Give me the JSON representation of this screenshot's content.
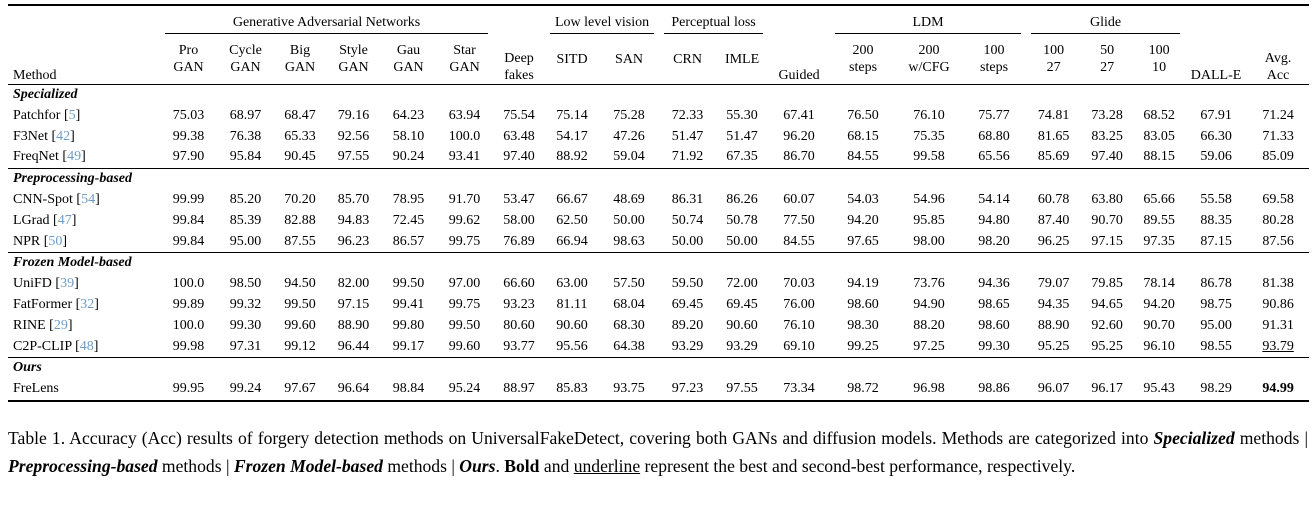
{
  "colors": {
    "citation": "#6d9cc7",
    "text": "#000000",
    "background": "#ffffff"
  },
  "table": {
    "columns": [
      {
        "kind": "rowspan",
        "label": "Method"
      },
      {
        "kind": "group",
        "label": "Generative Adversarial Networks",
        "subs": [
          "Pro\nGAN",
          "Cycle\nGAN",
          "Big\nGAN",
          "Style\nGAN",
          "Gau\nGAN",
          "Star\nGAN"
        ]
      },
      {
        "kind": "rowspan",
        "label": "Deep\nfakes"
      },
      {
        "kind": "group",
        "label": "Low level vision",
        "subs": [
          "SITD",
          "SAN"
        ]
      },
      {
        "kind": "group",
        "label": "Perceptual loss",
        "subs": [
          "CRN",
          "IMLE"
        ]
      },
      {
        "kind": "rowspan",
        "label": "Guided"
      },
      {
        "kind": "group",
        "label": "LDM",
        "subs": [
          "200\nsteps",
          "200\nw/CFG",
          "100\nsteps"
        ]
      },
      {
        "kind": "group",
        "label": "Glide",
        "subs": [
          "100\n27",
          "50\n27",
          "100\n10"
        ]
      },
      {
        "kind": "rowspan",
        "label": "DALL-E"
      },
      {
        "kind": "rowspan",
        "label": "Avg.\nAcc"
      }
    ],
    "sections": [
      {
        "title": "Specialized",
        "rows": [
          {
            "method": "Patchfor",
            "ref": "5",
            "values": [
              "75.03",
              "68.97",
              "68.47",
              "79.16",
              "64.23",
              "63.94",
              "75.54",
              "75.14",
              "75.28",
              "72.33",
              "55.30",
              "67.41",
              "76.50",
              "76.10",
              "75.77",
              "74.81",
              "73.28",
              "68.52",
              "67.91",
              "71.24"
            ]
          },
          {
            "method": "F3Net",
            "ref": "42",
            "values": [
              "99.38",
              "76.38",
              "65.33",
              "92.56",
              "58.10",
              "100.0",
              "63.48",
              "54.17",
              "47.26",
              "51.47",
              "51.47",
              "96.20",
              "68.15",
              "75.35",
              "68.80",
              "81.65",
              "83.25",
              "83.05",
              "66.30",
              "71.33"
            ]
          },
          {
            "method": "FreqNet",
            "ref": "49",
            "values": [
              "97.90",
              "95.84",
              "90.45",
              "97.55",
              "90.24",
              "93.41",
              "97.40",
              "88.92",
              "59.04",
              "71.92",
              "67.35",
              "86.70",
              "84.55",
              "99.58",
              "65.56",
              "85.69",
              "97.40",
              "88.15",
              "59.06",
              "85.09"
            ]
          }
        ]
      },
      {
        "title": "Preprocessing-based",
        "rows": [
          {
            "method": "CNN-Spot",
            "ref": "54",
            "values": [
              "99.99",
              "85.20",
              "70.20",
              "85.70",
              "78.95",
              "91.70",
              "53.47",
              "66.67",
              "48.69",
              "86.31",
              "86.26",
              "60.07",
              "54.03",
              "54.96",
              "54.14",
              "60.78",
              "63.80",
              "65.66",
              "55.58",
              "69.58"
            ]
          },
          {
            "method": "LGrad",
            "ref": "47",
            "values": [
              "99.84",
              "85.39",
              "82.88",
              "94.83",
              "72.45",
              "99.62",
              "58.00",
              "62.50",
              "50.00",
              "50.74",
              "50.78",
              "77.50",
              "94.20",
              "95.85",
              "94.80",
              "87.40",
              "90.70",
              "89.55",
              "88.35",
              "80.28"
            ]
          },
          {
            "method": "NPR",
            "ref": "50",
            "values": [
              "99.84",
              "95.00",
              "87.55",
              "96.23",
              "86.57",
              "99.75",
              "76.89",
              "66.94",
              "98.63",
              "50.00",
              "50.00",
              "84.55",
              "97.65",
              "98.00",
              "98.20",
              "96.25",
              "97.15",
              "97.35",
              "87.15",
              "87.56"
            ]
          }
        ]
      },
      {
        "title": "Frozen Model-based",
        "rows": [
          {
            "method": "UniFD",
            "ref": "39",
            "values": [
              "100.0",
              "98.50",
              "94.50",
              "82.00",
              "99.50",
              "97.00",
              "66.60",
              "63.00",
              "57.50",
              "59.50",
              "72.00",
              "70.03",
              "94.19",
              "73.76",
              "94.36",
              "79.07",
              "79.85",
              "78.14",
              "86.78",
              "81.38"
            ]
          },
          {
            "method": "FatFormer",
            "ref": "32",
            "values": [
              "99.89",
              "99.32",
              "99.50",
              "97.15",
              "99.41",
              "99.75",
              "93.23",
              "81.11",
              "68.04",
              "69.45",
              "69.45",
              "76.00",
              "98.60",
              "94.90",
              "98.65",
              "94.35",
              "94.65",
              "94.20",
              "98.75",
              "90.86"
            ]
          },
          {
            "method": "RINE",
            "ref": "29",
            "values": [
              "100.0",
              "99.30",
              "99.60",
              "88.90",
              "99.80",
              "99.50",
              "80.60",
              "90.60",
              "68.30",
              "89.20",
              "90.60",
              "76.10",
              "98.30",
              "88.20",
              "98.60",
              "88.90",
              "92.60",
              "90.70",
              "95.00",
              "91.31"
            ]
          },
          {
            "method": "C2P-CLIP",
            "ref": "48",
            "values": [
              "99.98",
              "97.31",
              "99.12",
              "96.44",
              "99.17",
              "99.60",
              "93.77",
              "95.56",
              "64.38",
              "93.29",
              "93.29",
              "69.10",
              "99.25",
              "97.25",
              "99.30",
              "95.25",
              "95.25",
              "96.10",
              "98.55",
              "93.79"
            ],
            "styles": {
              "19": "underline"
            }
          }
        ]
      },
      {
        "title": "Ours",
        "rows": [
          {
            "method": "FreLens",
            "ref": null,
            "values": [
              "99.95",
              "99.24",
              "97.67",
              "96.64",
              "98.84",
              "95.24",
              "88.97",
              "85.83",
              "93.75",
              "97.23",
              "97.55",
              "73.34",
              "98.72",
              "96.98",
              "98.86",
              "96.07",
              "96.17",
              "95.43",
              "98.29",
              "94.99"
            ],
            "styles": {
              "19": "bold"
            }
          }
        ]
      }
    ]
  },
  "caption": {
    "segments": [
      {
        "text": "Table 1. Accuracy (Acc) results of forgery detection methods on UniversalFakeDetect, covering both GANs and diffusion models. Methods are categorized into ",
        "style": ""
      },
      {
        "text": "Specialized",
        "style": "bi"
      },
      {
        "text": " methods | ",
        "style": ""
      },
      {
        "text": "Preprocessing-based",
        "style": "bi"
      },
      {
        "text": " methods | ",
        "style": ""
      },
      {
        "text": "Frozen Model-based",
        "style": "bi"
      },
      {
        "text": " methods | ",
        "style": ""
      },
      {
        "text": "Ours",
        "style": "bi"
      },
      {
        "text": ".  ",
        "style": ""
      },
      {
        "text": "Bold",
        "style": "b"
      },
      {
        "text": " and ",
        "style": ""
      },
      {
        "text": "underline",
        "style": "u"
      },
      {
        "text": " represent the best and second-best performance, respectively.",
        "style": ""
      }
    ]
  }
}
